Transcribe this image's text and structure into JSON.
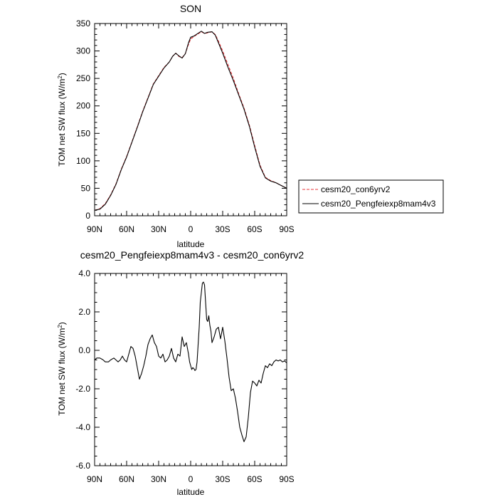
{
  "chart_data": [
    {
      "type": "line",
      "title": "SON",
      "xlabel": "latitude",
      "ylabel_main": "TOM net SW flux (W/m",
      "ylabel_sup": "2",
      "ylabel_end": ")",
      "xlim": [
        90,
        -90
      ],
      "ylim": [
        0,
        350
      ],
      "xticks": [
        {
          "value": 90,
          "label": "90N"
        },
        {
          "value": 60,
          "label": "60N"
        },
        {
          "value": 30,
          "label": "30N"
        },
        {
          "value": 0,
          "label": "0"
        },
        {
          "value": -30,
          "label": "30S"
        },
        {
          "value": -60,
          "label": "60S"
        },
        {
          "value": -90,
          "label": "90S"
        }
      ],
      "yticks": [
        {
          "value": 0,
          "label": "0"
        },
        {
          "value": 50,
          "label": "50"
        },
        {
          "value": 100,
          "label": "100"
        },
        {
          "value": 150,
          "label": "150"
        },
        {
          "value": 200,
          "label": "200"
        },
        {
          "value": 250,
          "label": "250"
        },
        {
          "value": 300,
          "label": "300"
        },
        {
          "value": 350,
          "label": "350"
        }
      ],
      "legend": {
        "placement": "right",
        "entries": [
          "cesm20_con6yrv2",
          "cesm20_Pengfeiexp8mam4v3"
        ]
      },
      "series": [
        {
          "name": "cesm20_con6yrv2",
          "color": "#e8343a",
          "style": "dashed",
          "x": [
            90,
            85,
            80,
            75,
            70,
            65,
            60,
            55,
            50,
            45,
            40,
            35,
            30,
            25,
            20,
            17,
            14,
            11,
            8,
            5,
            2,
            0,
            -3,
            -6,
            -10,
            -13,
            -16,
            -20,
            -23,
            -26,
            -30,
            -35,
            -40,
            -45,
            -50,
            -55,
            -60,
            -65,
            -70,
            -75,
            -80,
            -85,
            -90
          ],
          "y": [
            10,
            13,
            22,
            38,
            58,
            85,
            108,
            135,
            162,
            190,
            215,
            240,
            255,
            270,
            280,
            290,
            296,
            290,
            288,
            295,
            312,
            322,
            326,
            330,
            335,
            332,
            333,
            335,
            330,
            318,
            300,
            275,
            250,
            222,
            196,
            165,
            128,
            92,
            70,
            64,
            60,
            55,
            50
          ]
        },
        {
          "name": "cesm20_Pengfeiexp8mam4v3",
          "color": "#000000",
          "style": "solid",
          "x": [
            90,
            85,
            80,
            75,
            70,
            65,
            60,
            55,
            50,
            45,
            40,
            35,
            30,
            25,
            20,
            17,
            14,
            11,
            8,
            5,
            2,
            0,
            -3,
            -6,
            -10,
            -13,
            -16,
            -20,
            -23,
            -26,
            -30,
            -35,
            -40,
            -45,
            -50,
            -55,
            -60,
            -65,
            -70,
            -75,
            -80,
            -85,
            -90
          ],
          "y": [
            10,
            12,
            21,
            37,
            57,
            84,
            107,
            134,
            161,
            189,
            214,
            239,
            254,
            269,
            280,
            290,
            296,
            291,
            287,
            295,
            315,
            325,
            327,
            331,
            336,
            332,
            334,
            335,
            329,
            315,
            296,
            270,
            246,
            220,
            194,
            163,
            125,
            90,
            69,
            63,
            60,
            55,
            50
          ]
        }
      ]
    },
    {
      "type": "line",
      "title": "cesm20_Pengfeiexp8mam4v3 - cesm20_con6yrv2",
      "xlabel": "latitude",
      "ylabel_main": "TOM net SW flux (W/m",
      "ylabel_sup": "2",
      "ylabel_end": ")",
      "xlim": [
        90,
        -90
      ],
      "ylim": [
        -6,
        4
      ],
      "xticks": [
        {
          "value": 90,
          "label": "90N"
        },
        {
          "value": 60,
          "label": "60N"
        },
        {
          "value": 30,
          "label": "30N"
        },
        {
          "value": 0,
          "label": "0"
        },
        {
          "value": -30,
          "label": "30S"
        },
        {
          "value": -60,
          "label": "60S"
        },
        {
          "value": -90,
          "label": "90S"
        }
      ],
      "yticks": [
        {
          "value": -6,
          "label": "-6.0"
        },
        {
          "value": -4,
          "label": "-4.0"
        },
        {
          "value": -2,
          "label": "-2.0"
        },
        {
          "value": 0,
          "label": "0.0"
        },
        {
          "value": 2,
          "label": "2.0"
        },
        {
          "value": 4,
          "label": "4.0"
        }
      ],
      "series": [
        {
          "name": "cesm20_Pengfeiexp8mam4v3 - cesm20_con6yrv2",
          "color": "#000000",
          "style": "solid",
          "x": [
            90,
            88,
            85,
            82,
            80,
            77,
            75,
            72,
            70,
            68,
            66,
            64,
            62,
            60,
            58,
            56,
            54,
            52,
            50,
            48,
            46,
            44,
            42,
            40,
            38,
            36,
            34,
            32,
            30,
            28,
            26,
            24,
            22,
            20,
            18,
            16,
            14,
            12,
            10,
            8,
            6,
            4,
            2,
            1,
            0,
            -1,
            -2,
            -3,
            -4,
            -5,
            -6,
            -7,
            -8,
            -9,
            -10,
            -11,
            -12,
            -13,
            -14,
            -15,
            -16,
            -17,
            -18,
            -19,
            -20,
            -22,
            -24,
            -26,
            -28,
            -30,
            -32,
            -34,
            -36,
            -38,
            -40,
            -42,
            -44,
            -46,
            -48,
            -50,
            -52,
            -54,
            -56,
            -58,
            -60,
            -62,
            -64,
            -66,
            -68,
            -70,
            -72,
            -74,
            -76,
            -78,
            -80,
            -82,
            -84,
            -86,
            -88,
            -90
          ],
          "y": [
            -0.5,
            -0.4,
            -0.4,
            -0.5,
            -0.6,
            -0.6,
            -0.5,
            -0.4,
            -0.5,
            -0.6,
            -0.5,
            -0.3,
            -0.5,
            -0.6,
            -0.2,
            0.2,
            0.1,
            -0.3,
            -0.9,
            -1.5,
            -1.2,
            -0.8,
            -0.3,
            0.3,
            0.6,
            0.8,
            0.4,
            0.2,
            -0.3,
            -0.4,
            -0.2,
            -0.6,
            -0.5,
            -0.3,
            0.1,
            -0.4,
            -0.6,
            -0.2,
            -0.3,
            0.7,
            0.2,
            0.4,
            -0.2,
            -0.6,
            -0.8,
            -1.0,
            -0.9,
            -0.95,
            -1.05,
            -1.0,
            -0.6,
            0.3,
            1.2,
            2.5,
            3.0,
            3.5,
            3.55,
            3.4,
            2.5,
            1.6,
            1.5,
            1.8,
            1.3,
            1.0,
            0.4,
            0.7,
            1.1,
            1.2,
            0.6,
            1.2,
            0.5,
            -0.4,
            -1.4,
            -2.1,
            -2.0,
            -2.5,
            -3.2,
            -4.0,
            -4.4,
            -4.75,
            -4.5,
            -3.5,
            -2.2,
            -1.6,
            -1.7,
            -1.85,
            -1.55,
            -1.7,
            -1.2,
            -0.8,
            -0.9,
            -0.7,
            -0.8,
            -0.6,
            -0.5,
            -0.55,
            -0.5,
            -0.6,
            -0.55,
            -0.65
          ]
        }
      ]
    }
  ]
}
